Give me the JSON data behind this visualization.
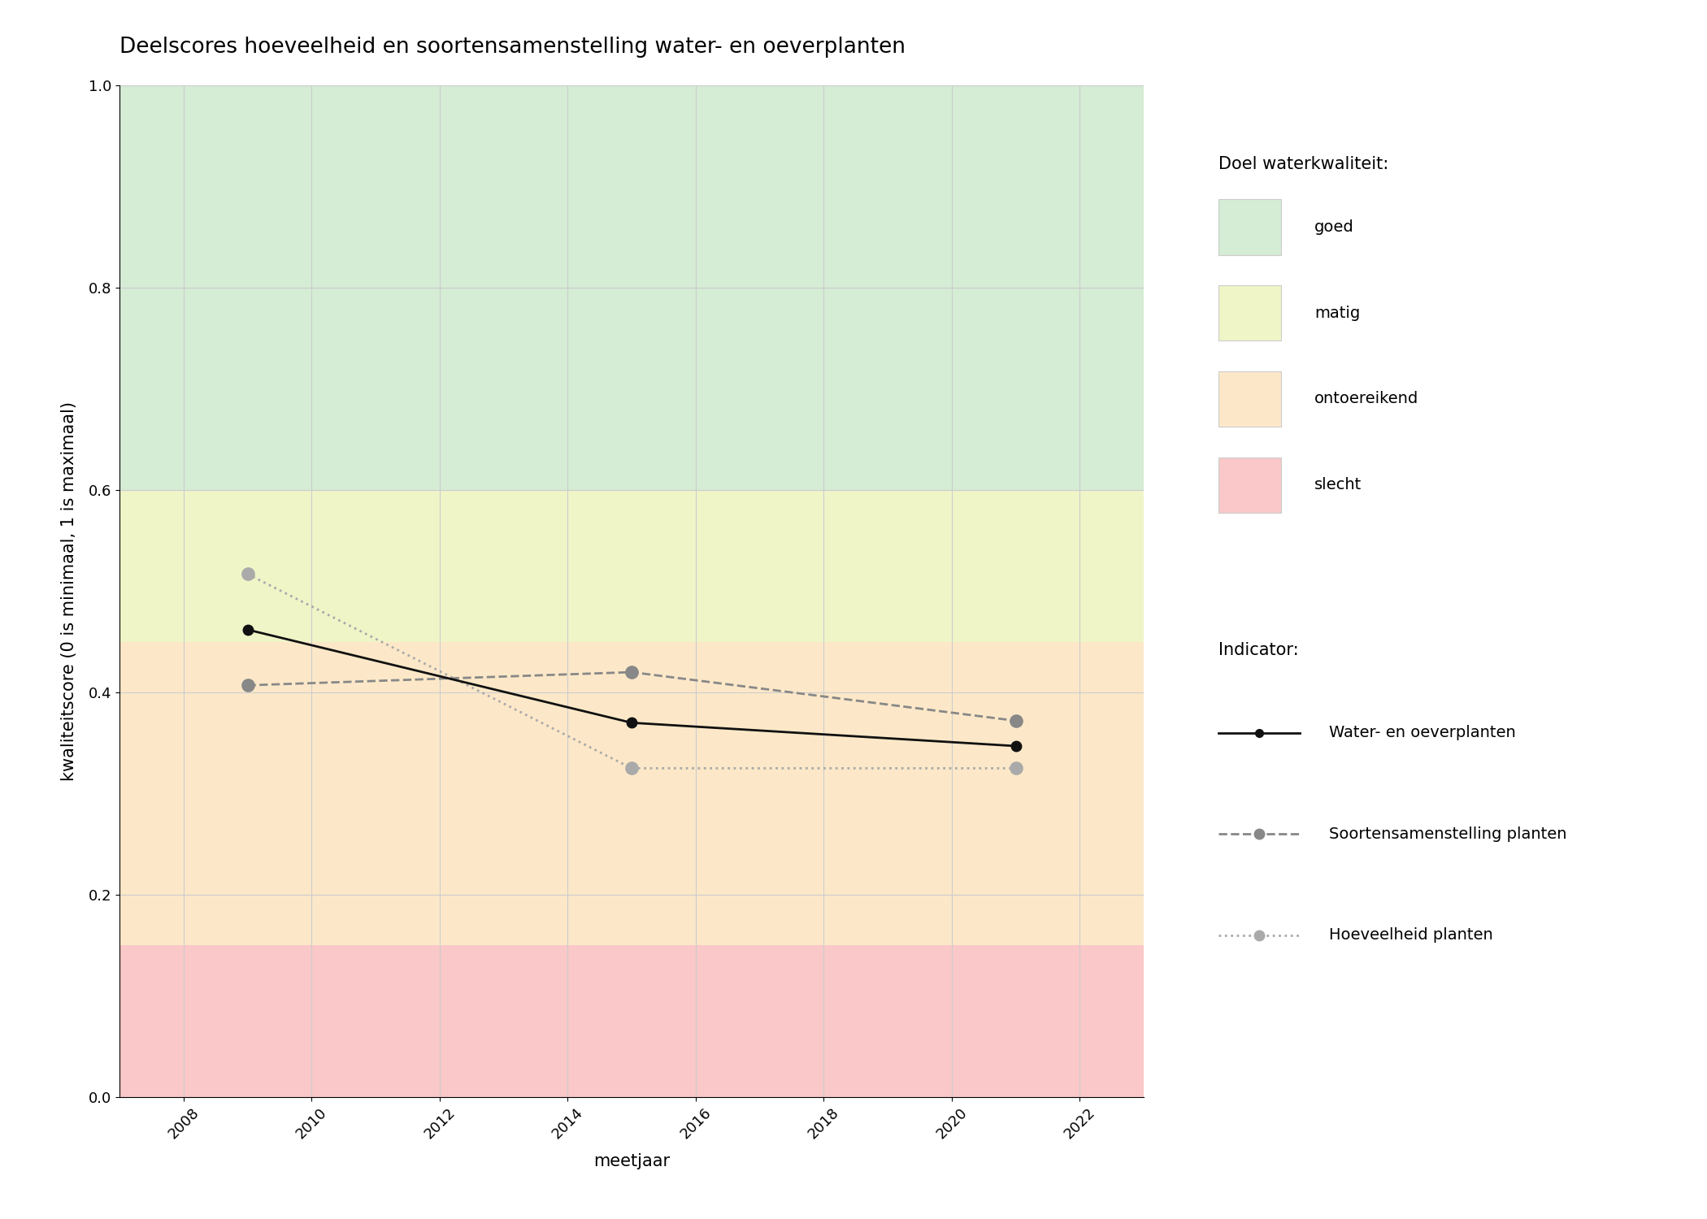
{
  "title": "Deelscores hoeveelheid en soortensamenstelling water- en oeverplanten",
  "xlabel": "meetjaar",
  "ylabel": "kwaliteitscore (0 is minimaal, 1 is maximaal)",
  "xlim": [
    2007,
    2023
  ],
  "ylim": [
    0.0,
    1.0
  ],
  "xticks": [
    2008,
    2010,
    2012,
    2014,
    2016,
    2018,
    2020,
    2022
  ],
  "yticks": [
    0.0,
    0.2,
    0.4,
    0.6,
    0.8,
    1.0
  ],
  "bg_bands": [
    {
      "ymin": 0.6,
      "ymax": 1.0,
      "color": "#d5ecd5",
      "label": "goed"
    },
    {
      "ymin": 0.45,
      "ymax": 0.6,
      "color": "#f0f5c8",
      "label": "matig"
    },
    {
      "ymin": 0.15,
      "ymax": 0.45,
      "color": "#fce8c8",
      "label": "ontoereikend"
    },
    {
      "ymin": 0.0,
      "ymax": 0.15,
      "color": "#fac8c8",
      "label": "slecht"
    }
  ],
  "line_water": {
    "x": [
      2009,
      2015,
      2021
    ],
    "y": [
      0.462,
      0.37,
      0.347
    ],
    "color": "#111111",
    "linestyle": "solid",
    "linewidth": 2.0,
    "marker": "o",
    "markersize": 9,
    "markerfacecolor": "#111111",
    "markeredgecolor": "#111111",
    "label": "Water- en oeverplanten",
    "zorder": 5
  },
  "line_soort": {
    "x": [
      2009,
      2015,
      2021
    ],
    "y": [
      0.407,
      0.42,
      0.372
    ],
    "color": "#888888",
    "linestyle": "dashed",
    "linewidth": 2.0,
    "marker": "o",
    "markersize": 11,
    "markerfacecolor": "#888888",
    "markeredgecolor": "#888888",
    "label": "Soortensamenstelling planten",
    "zorder": 4
  },
  "line_hoeveelheid": {
    "x": [
      2009,
      2015,
      2021
    ],
    "y": [
      0.517,
      0.325,
      0.325
    ],
    "color": "#aaaaaa",
    "linestyle": "dotted",
    "linewidth": 2.0,
    "marker": "o",
    "markersize": 11,
    "markerfacecolor": "#aaaaaa",
    "markeredgecolor": "#aaaaaa",
    "label": "Hoeveelheid planten",
    "zorder": 3
  },
  "legend_quality_title": "Doel waterkwaliteit:",
  "legend_indicator_title": "Indicator:",
  "grid_color": "#cccccc",
  "grid_linewidth": 0.8,
  "background_color": "#ffffff",
  "title_fontsize": 19,
  "axis_label_fontsize": 15,
  "tick_fontsize": 13,
  "legend_fontsize": 14,
  "legend_title_fontsize": 15
}
